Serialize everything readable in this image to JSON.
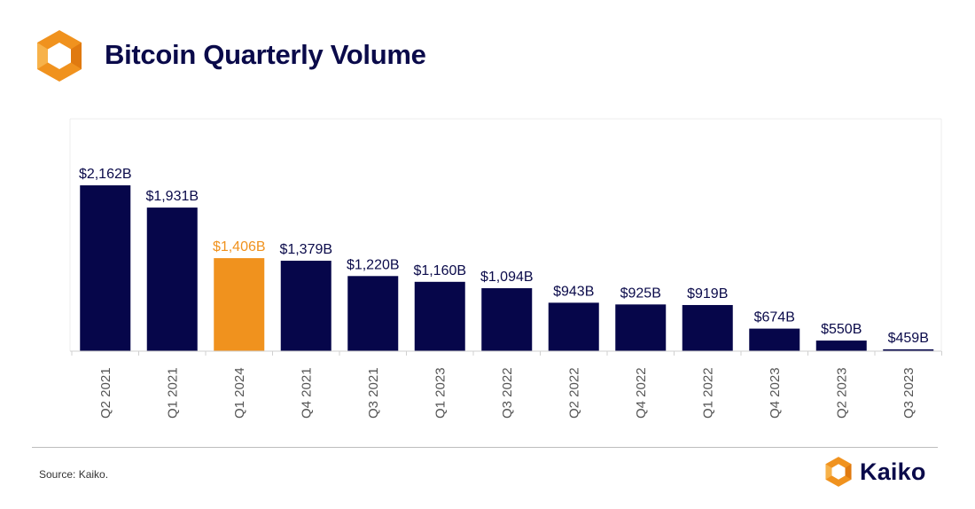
{
  "header": {
    "title": "Bitcoin Quarterly Volume",
    "logo_icon": "kaiko-hexagon-icon"
  },
  "footer": {
    "source": "Source: Kaiko.",
    "brand": "Kaiko",
    "brand_icon": "kaiko-hexagon-icon"
  },
  "colors": {
    "navy": "#06064a",
    "orange": "#f0921e",
    "title": "#0a0a4a"
  },
  "chart_data": {
    "type": "bar",
    "title": "Bitcoin Quarterly Volume",
    "xlabel": "",
    "ylabel": "",
    "categories": [
      "Q2 2021",
      "Q1 2021",
      "Q1 2024",
      "Q4 2021",
      "Q3 2021",
      "Q1 2023",
      "Q3 2022",
      "Q2 2022",
      "Q4 2022",
      "Q1 2022",
      "Q4 2023",
      "Q2 2023",
      "Q3 2023"
    ],
    "values": [
      2162,
      1931,
      1406,
      1379,
      1220,
      1160,
      1094,
      943,
      925,
      919,
      674,
      550,
      459
    ],
    "labels": [
      "$2,162B",
      "$1,931B",
      "$1,406B",
      "$1,379B",
      "$1,220B",
      "$1,160B",
      "$1,094B",
      "$943B",
      "$925B",
      "$919B",
      "$674B",
      "$550B",
      "$459B"
    ],
    "highlight_category": "Q1 2024",
    "units": "USD billions",
    "ylim": [
      440,
      2162
    ],
    "grid": false,
    "legend": "none"
  }
}
